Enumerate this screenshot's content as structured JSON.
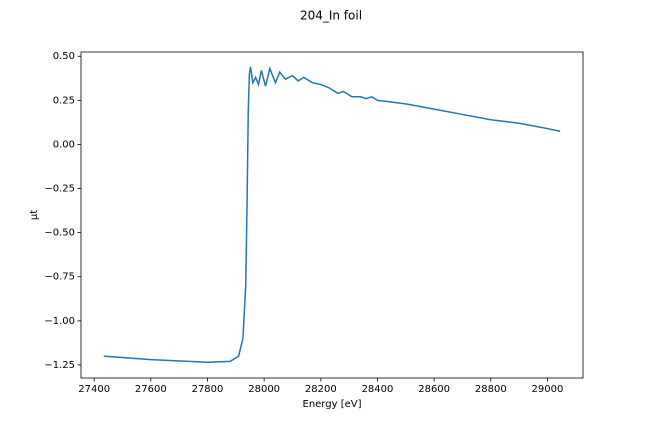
{
  "chart_data": {
    "type": "line",
    "title": "204_In foil",
    "x_label": "Energy [eV]",
    "y_label": "μt",
    "x": [
      27434,
      27600,
      27800,
      27880,
      27910,
      27925,
      27935,
      27940,
      27944,
      27948,
      27952,
      27960,
      27970,
      27980,
      27990,
      28005,
      28020,
      28040,
      28055,
      28075,
      28100,
      28120,
      28140,
      28170,
      28200,
      28230,
      28260,
      28280,
      28310,
      28340,
      28360,
      28380,
      28400,
      28500,
      28600,
      28700,
      28800,
      28900,
      29000,
      29045
    ],
    "values": [
      -1.2,
      -1.22,
      -1.235,
      -1.23,
      -1.2,
      -1.1,
      -0.8,
      -0.3,
      0.2,
      0.4,
      0.44,
      0.35,
      0.38,
      0.34,
      0.42,
      0.33,
      0.43,
      0.35,
      0.41,
      0.37,
      0.39,
      0.36,
      0.38,
      0.35,
      0.34,
      0.32,
      0.29,
      0.3,
      0.27,
      0.27,
      0.26,
      0.27,
      0.25,
      0.23,
      0.2,
      0.17,
      0.14,
      0.12,
      0.09,
      0.075
    ],
    "color": "#1f77b4",
    "xlim": [
      27353.5,
      29125.5
    ],
    "ylim": [
      -1.324,
      0.524
    ],
    "xticks": [
      27400,
      27600,
      27800,
      28000,
      28200,
      28400,
      28600,
      28800,
      29000
    ],
    "yticks": [
      {
        "value": -1.25,
        "label": "−1.25"
      },
      {
        "value": -1.0,
        "label": "−1.00"
      },
      {
        "value": -0.75,
        "label": "−0.75"
      },
      {
        "value": -0.5,
        "label": "−0.50"
      },
      {
        "value": -0.25,
        "label": "−0.25"
      },
      {
        "value": 0,
        "label": "0.00"
      },
      {
        "value": 0.25,
        "label": "0.25"
      },
      {
        "value": 0.5,
        "label": "0.50"
      }
    ]
  }
}
